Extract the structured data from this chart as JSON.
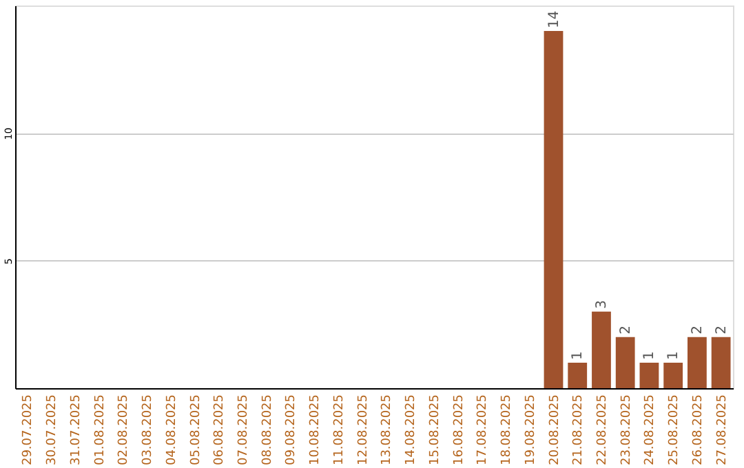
{
  "chart_data": {
    "type": "bar",
    "categories": [
      "29.07.2025",
      "30.07.2025",
      "31.07.2025",
      "01.08.2025",
      "02.08.2025",
      "03.08.2025",
      "04.08.2025",
      "05.08.2025",
      "06.08.2025",
      "07.08.2025",
      "08.08.2025",
      "09.08.2025",
      "10.08.2025",
      "11.08.2025",
      "12.08.2025",
      "13.08.2025",
      "14.08.2025",
      "15.08.2025",
      "16.08.2025",
      "17.08.2025",
      "18.08.2025",
      "19.08.2025",
      "20.08.2025",
      "21.08.2025",
      "22.08.2025",
      "23.08.2025",
      "24.08.2025",
      "25.08.2025",
      "26.08.2025",
      "27.08.2025"
    ],
    "values": [
      0,
      0,
      0,
      0,
      0,
      0,
      0,
      0,
      0,
      0,
      0,
      0,
      0,
      0,
      0,
      0,
      0,
      0,
      0,
      0,
      0,
      0,
      14,
      1,
      3,
      2,
      1,
      1,
      2,
      2
    ],
    "value_labels": [
      null,
      null,
      null,
      null,
      null,
      null,
      null,
      null,
      null,
      null,
      null,
      null,
      null,
      null,
      null,
      null,
      null,
      null,
      null,
      null,
      null,
      null,
      "14",
      "1",
      "3",
      "2",
      "1",
      "1",
      "2",
      "2"
    ],
    "color": "#a0522d",
    "ylim": [
      0,
      15
    ],
    "yticks": [
      5,
      10
    ],
    "grid": "y"
  }
}
